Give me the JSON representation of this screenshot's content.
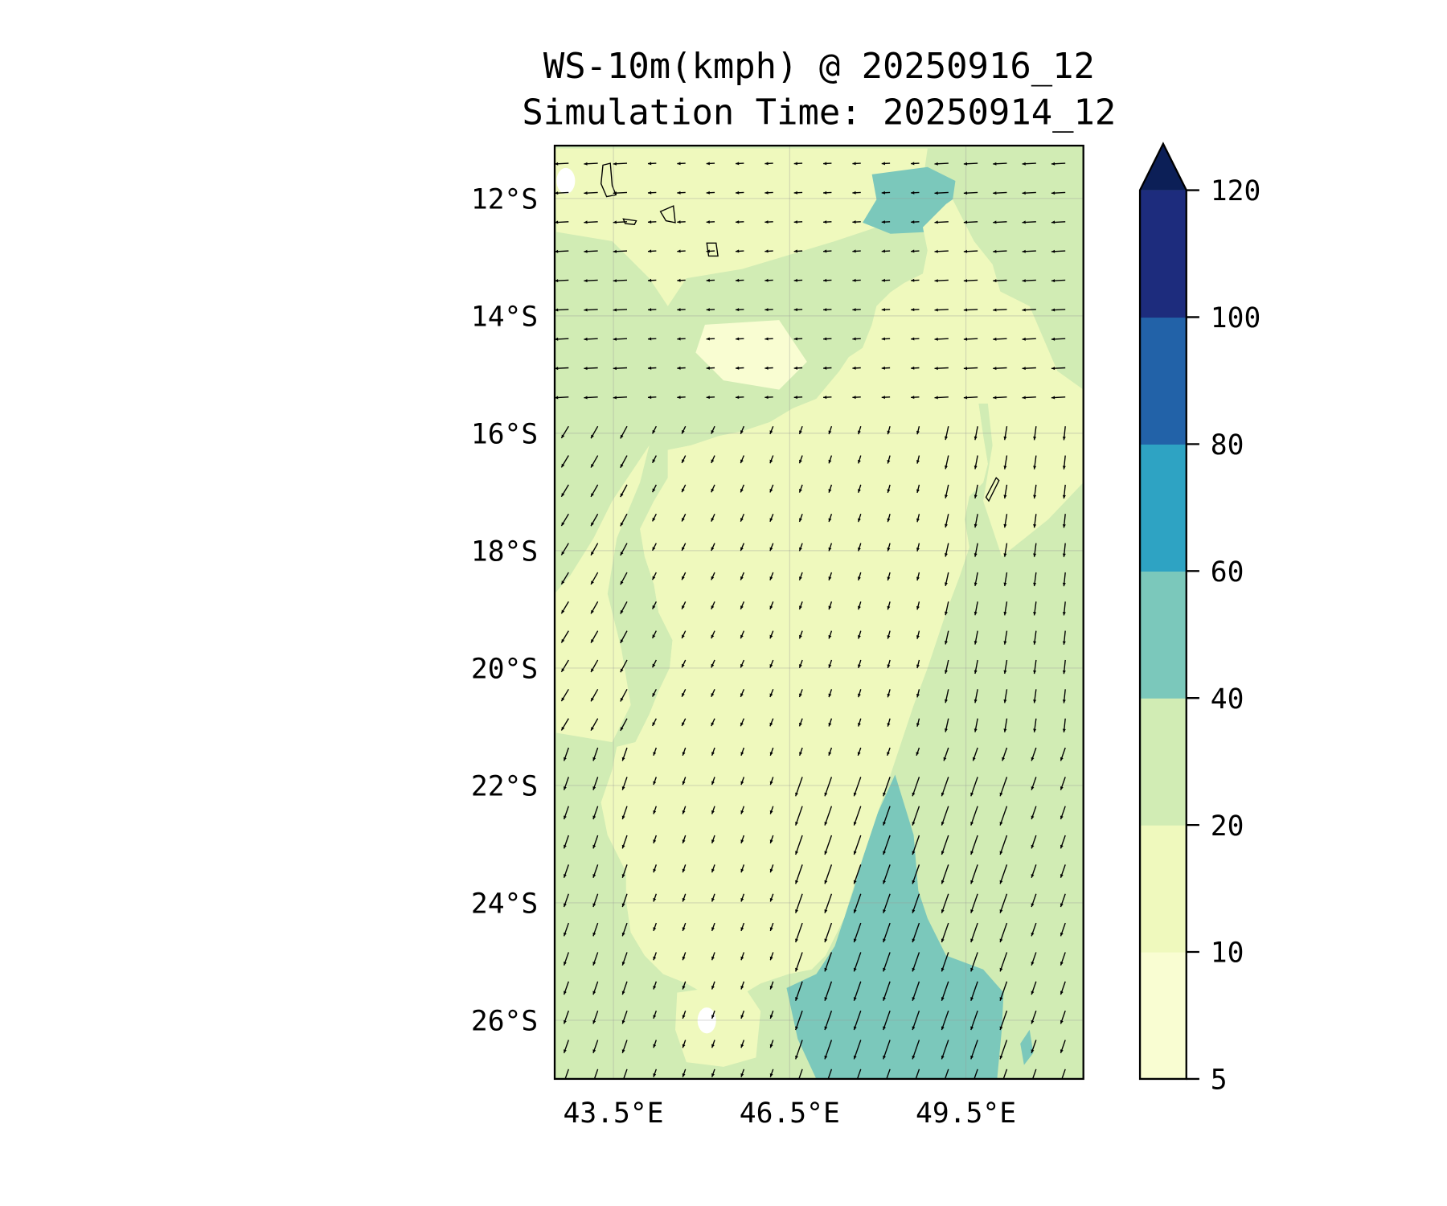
{
  "chart_data": {
    "type": "heatmap",
    "title_line1": "WS-10m(kmph) @ 20250916_12",
    "title_line2": "Simulation Time: 20250914_12",
    "variable": "10 m wind speed (km/h) with wind vectors",
    "xlim": [
      42.5,
      51.5
    ],
    "ylim": [
      -27.0,
      -11.1
    ],
    "x_ticks": [
      {
        "value": 43.5,
        "label": "43.5°E"
      },
      {
        "value": 46.5,
        "label": "46.5°E"
      },
      {
        "value": 49.5,
        "label": "49.5°E"
      }
    ],
    "y_ticks": [
      {
        "value": -12,
        "label": "12°S"
      },
      {
        "value": -14,
        "label": "14°S"
      },
      {
        "value": -16,
        "label": "16°S"
      },
      {
        "value": -18,
        "label": "18°S"
      },
      {
        "value": -20,
        "label": "20°S"
      },
      {
        "value": -22,
        "label": "22°S"
      },
      {
        "value": -24,
        "label": "24°S"
      },
      {
        "value": -26,
        "label": "26°S"
      }
    ],
    "grid": true,
    "colorbar": {
      "position": "right",
      "extend": "max",
      "levels": [
        5,
        10,
        20,
        40,
        60,
        80,
        100,
        120
      ],
      "tick_labels": [
        "5",
        "10",
        "20",
        "40",
        "60",
        "80",
        "100",
        "120"
      ],
      "colors": [
        "#f9fdd2",
        "#eff9bd",
        "#d1ecb4",
        "#7bc8bb",
        "#2ea3c3",
        "#2262a8",
        "#1d2c7d"
      ],
      "over_color": "#0c1f57"
    },
    "summary": {
      "ocean_background_range": "20-40",
      "land_interior_range": "10-20 with patches 5-10",
      "southeast_ocean_max_range": "40-60",
      "northern_tip_offshore_range": "40-60"
    }
  }
}
